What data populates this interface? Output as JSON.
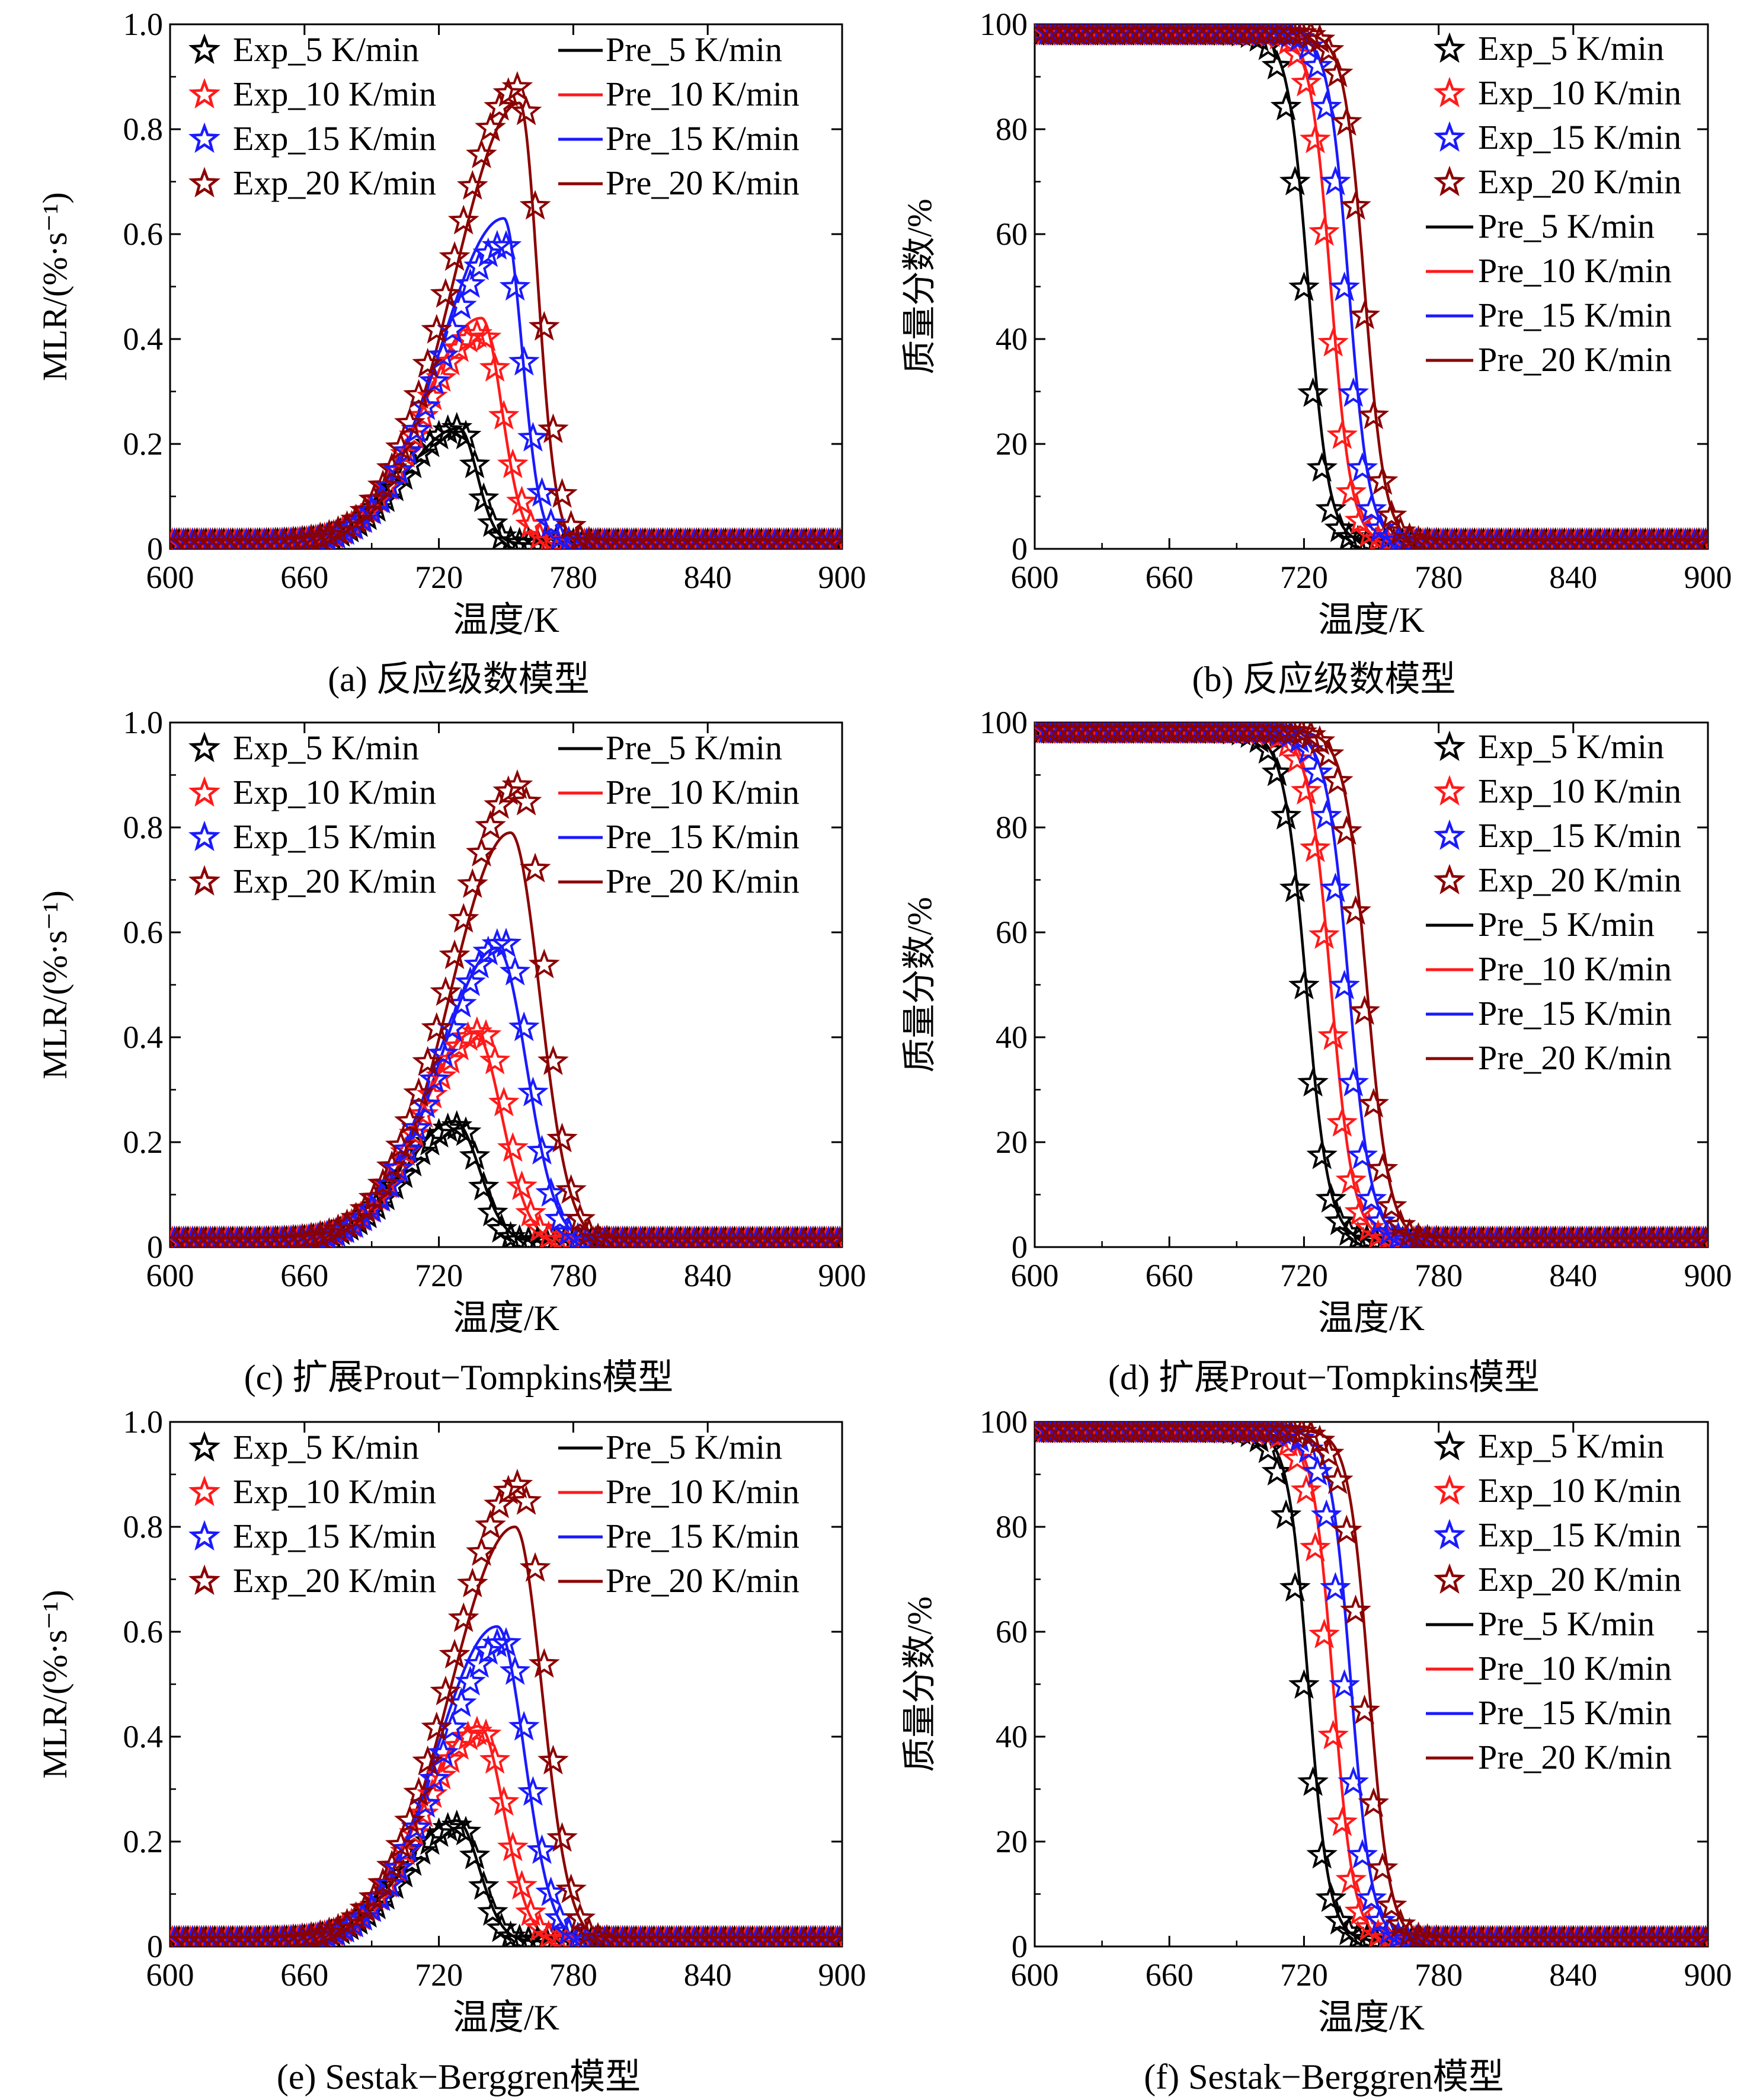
{
  "colors": {
    "exp_5": "#000000",
    "exp_10": "#ff1a1a",
    "exp_15": "#1a1aff",
    "exp_20": "#8b0000",
    "pre_5": "#000000",
    "pre_10": "#ff1a1a",
    "pre_15": "#1a1aff",
    "pre_20": "#8b0000"
  },
  "legend": {
    "exp": [
      "Exp_5 K/min",
      "Exp_10 K/min",
      "Exp_15 K/min",
      "Exp_20 K/min"
    ],
    "pre": [
      "Pre_5 K/min",
      "Pre_10 K/min",
      "Pre_15 K/min",
      "Pre_20 K/min"
    ]
  },
  "chart_data": [
    {
      "id": "a",
      "type": "line",
      "caption": "(a) 反应级数模型",
      "xlabel": "温度/K",
      "ylabel": "MLR/(%·s⁻¹)",
      "xlim": [
        600,
        900
      ],
      "ylim": [
        0,
        1.0
      ],
      "xticks": [
        "600",
        "660",
        "720",
        "780",
        "840",
        "900"
      ],
      "yticks": [
        "0",
        "0.2",
        "0.4",
        "0.6",
        "0.8",
        "1.0"
      ],
      "exp_series": [
        {
          "name": "Exp_5 K/min",
          "peak_x": 729,
          "peak_y": 0.23,
          "left_w": 24,
          "right_w": 8
        },
        {
          "name": "Exp_10 K/min",
          "peak_x": 739,
          "peak_y": 0.41,
          "left_w": 26,
          "right_w": 10
        },
        {
          "name": "Exp_15 K/min",
          "peak_x": 749,
          "peak_y": 0.58,
          "left_w": 28,
          "right_w": 9
        },
        {
          "name": "Exp_20 K/min",
          "peak_x": 756,
          "peak_y": 0.88,
          "left_w": 30,
          "right_w": 9
        }
      ],
      "pre_series": [
        {
          "name": "Pre_5 K/min",
          "peak_x": 729,
          "peak_y": 0.23,
          "left_w": 24,
          "right_w": 8
        },
        {
          "name": "Pre_10 K/min",
          "peak_x": 739,
          "peak_y": 0.44,
          "left_w": 26,
          "right_w": 9
        },
        {
          "name": "Pre_15 K/min",
          "peak_x": 749,
          "peak_y": 0.63,
          "left_w": 28,
          "right_w": 8
        },
        {
          "name": "Pre_20 K/min",
          "peak_x": 756,
          "peak_y": 0.85,
          "left_w": 29,
          "right_w": 8
        }
      ]
    },
    {
      "id": "b",
      "type": "line",
      "caption": "(b) 反应级数模型",
      "xlabel": "温度/K",
      "ylabel": "质量分数/%",
      "xlim": [
        600,
        900
      ],
      "ylim": [
        0,
        100
      ],
      "xticks": [
        "600",
        "660",
        "720",
        "780",
        "840",
        "900"
      ],
      "yticks": [
        "0",
        "20",
        "40",
        "60",
        "80",
        "100"
      ],
      "exp_series": [
        {
          "name": "Exp_5 K/min",
          "mid_x": 720,
          "width": 10
        },
        {
          "name": "Exp_10 K/min",
          "mid_x": 731,
          "width": 10
        },
        {
          "name": "Exp_15 K/min",
          "mid_x": 738,
          "width": 10
        },
        {
          "name": "Exp_20 K/min",
          "mid_x": 746,
          "width": 10
        }
      ],
      "pre_series": [
        {
          "name": "Pre_5 K/min",
          "mid_x": 722,
          "width": 10
        },
        {
          "name": "Pre_10 K/min",
          "mid_x": 732,
          "width": 10
        },
        {
          "name": "Pre_15 K/min",
          "mid_x": 740,
          "width": 10
        },
        {
          "name": "Pre_20 K/min",
          "mid_x": 747,
          "width": 10
        }
      ]
    },
    {
      "id": "c",
      "type": "line",
      "caption": "(c) 扩展Prout−Tompkins模型",
      "xlabel": "温度/K",
      "ylabel": "MLR/(%·s⁻¹)",
      "xlim": [
        600,
        900
      ],
      "ylim": [
        0,
        1.0
      ],
      "xticks": [
        "600",
        "660",
        "720",
        "780",
        "840",
        "900"
      ],
      "yticks": [
        "0",
        "0.2",
        "0.4",
        "0.6",
        "0.8",
        "1.0"
      ],
      "exp_series": [
        {
          "name": "Exp_5 K/min",
          "peak_x": 729,
          "peak_y": 0.23,
          "left_w": 24,
          "right_w": 9
        },
        {
          "name": "Exp_10 K/min",
          "peak_x": 739,
          "peak_y": 0.41,
          "left_w": 26,
          "right_w": 11
        },
        {
          "name": "Exp_15 K/min",
          "peak_x": 749,
          "peak_y": 0.58,
          "left_w": 28,
          "right_w": 11
        },
        {
          "name": "Exp_20 K/min",
          "peak_x": 756,
          "peak_y": 0.88,
          "left_w": 30,
          "right_w": 11
        }
      ],
      "pre_series": [
        {
          "name": "Pre_5 K/min",
          "peak_x": 727,
          "peak_y": 0.24,
          "left_w": 22,
          "right_w": 11
        },
        {
          "name": "Pre_10 K/min",
          "peak_x": 736,
          "peak_y": 0.41,
          "left_w": 24,
          "right_w": 12
        },
        {
          "name": "Pre_15 K/min",
          "peak_x": 746,
          "peak_y": 0.57,
          "left_w": 26,
          "right_w": 13
        },
        {
          "name": "Pre_20 K/min",
          "peak_x": 752,
          "peak_y": 0.79,
          "left_w": 27,
          "right_w": 13
        }
      ]
    },
    {
      "id": "d",
      "type": "line",
      "caption": "(d) 扩展Prout−Tompkins模型",
      "xlabel": "温度/K",
      "ylabel": "质量分数/%",
      "xlim": [
        600,
        900
      ],
      "ylim": [
        0,
        100
      ],
      "xticks": [
        "600",
        "660",
        "720",
        "780",
        "840",
        "900"
      ],
      "yticks": [
        "0",
        "20",
        "40",
        "60",
        "80",
        "100"
      ],
      "exp_series": [
        {
          "name": "Exp_5 K/min",
          "mid_x": 720,
          "width": 11
        },
        {
          "name": "Exp_10 K/min",
          "mid_x": 731,
          "width": 11
        },
        {
          "name": "Exp_15 K/min",
          "mid_x": 738,
          "width": 11
        },
        {
          "name": "Exp_20 K/min",
          "mid_x": 746,
          "width": 11
        }
      ],
      "pre_series": [
        {
          "name": "Pre_5 K/min",
          "mid_x": 721,
          "width": 11
        },
        {
          "name": "Pre_10 K/min",
          "mid_x": 732,
          "width": 11
        },
        {
          "name": "Pre_15 K/min",
          "mid_x": 740,
          "width": 11
        },
        {
          "name": "Pre_20 K/min",
          "mid_x": 748,
          "width": 11
        }
      ]
    },
    {
      "id": "e",
      "type": "line",
      "caption": "(e) Sestak−Berggren模型",
      "xlabel": "温度/K",
      "ylabel": "MLR/(%·s⁻¹)",
      "xlim": [
        600,
        900
      ],
      "ylim": [
        0,
        1.0
      ],
      "xticks": [
        "600",
        "660",
        "720",
        "780",
        "840",
        "900"
      ],
      "yticks": [
        "0",
        "0.2",
        "0.4",
        "0.6",
        "0.8",
        "1.0"
      ],
      "exp_series": [
        {
          "name": "Exp_5 K/min",
          "peak_x": 729,
          "peak_y": 0.23,
          "left_w": 24,
          "right_w": 9
        },
        {
          "name": "Exp_10 K/min",
          "peak_x": 739,
          "peak_y": 0.41,
          "left_w": 26,
          "right_w": 11
        },
        {
          "name": "Exp_15 K/min",
          "peak_x": 749,
          "peak_y": 0.58,
          "left_w": 28,
          "right_w": 11
        },
        {
          "name": "Exp_20 K/min",
          "peak_x": 756,
          "peak_y": 0.88,
          "left_w": 30,
          "right_w": 11
        }
      ],
      "pre_series": [
        {
          "name": "Pre_5 K/min",
          "peak_x": 728,
          "peak_y": 0.24,
          "left_w": 24,
          "right_w": 10
        },
        {
          "name": "Pre_10 K/min",
          "peak_x": 738,
          "peak_y": 0.42,
          "left_w": 26,
          "right_w": 11
        },
        {
          "name": "Pre_15 K/min",
          "peak_x": 746,
          "peak_y": 0.61,
          "left_w": 27,
          "right_w": 12
        },
        {
          "name": "Pre_20 K/min",
          "peak_x": 754,
          "peak_y": 0.8,
          "left_w": 29,
          "right_w": 12
        }
      ]
    },
    {
      "id": "f",
      "type": "line",
      "caption": "(f) Sestak−Berggren模型",
      "xlabel": "温度/K",
      "ylabel": "质量分数/%",
      "xlim": [
        600,
        900
      ],
      "ylim": [
        0,
        100
      ],
      "xticks": [
        "600",
        "660",
        "720",
        "780",
        "840",
        "900"
      ],
      "yticks": [
        "0",
        "20",
        "40",
        "60",
        "80",
        "100"
      ],
      "exp_series": [
        {
          "name": "Exp_5 K/min",
          "mid_x": 720,
          "width": 11
        },
        {
          "name": "Exp_10 K/min",
          "mid_x": 731,
          "width": 11
        },
        {
          "name": "Exp_15 K/min",
          "mid_x": 738,
          "width": 11
        },
        {
          "name": "Exp_20 K/min",
          "mid_x": 746,
          "width": 11
        }
      ],
      "pre_series": [
        {
          "name": "Pre_5 K/min",
          "mid_x": 722,
          "width": 10
        },
        {
          "name": "Pre_10 K/min",
          "mid_x": 733,
          "width": 10
        },
        {
          "name": "Pre_15 K/min",
          "mid_x": 741,
          "width": 10
        },
        {
          "name": "Pre_20 K/min",
          "mid_x": 749,
          "width": 10
        }
      ]
    }
  ]
}
